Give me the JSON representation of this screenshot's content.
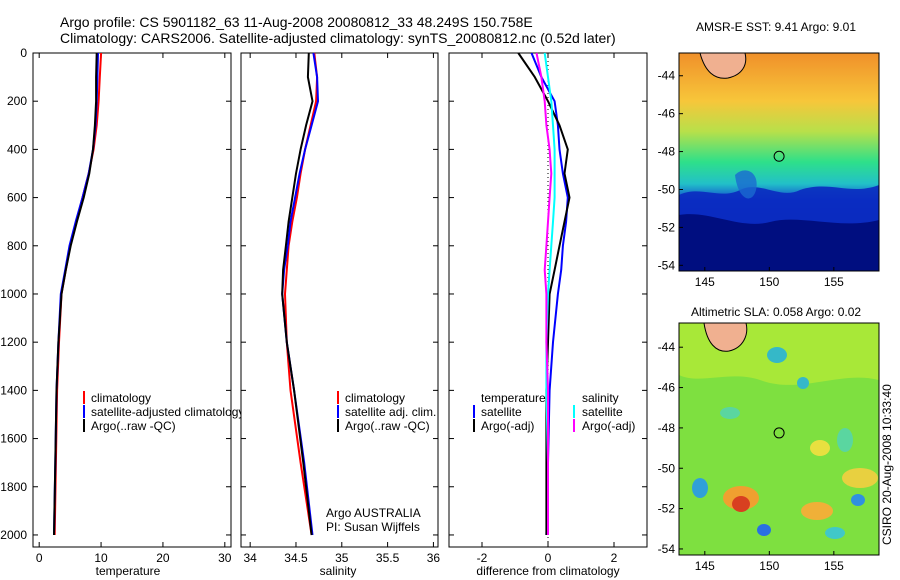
{
  "header": {
    "line1": "Argo profile: CS 5901182_63 11-Aug-2008 20080812_33 48.249S 150.758E",
    "line2": "Climatology: CARS2006. Satellite-adjusted climatology: synTS_20080812.nc (0.52d later)"
  },
  "sidebar_note": "CSIRO 20-Aug-2008 10:33:40",
  "colors": {
    "climatology": "#ff0000",
    "satellite": "#0000ff",
    "argo": "#000000",
    "salinity_satellite": "#00ffff",
    "salinity_argo": "#ff00ff"
  },
  "chart_data": [
    {
      "type": "line",
      "xlabel": "temperature",
      "ylabel": "",
      "xlim": [
        -1,
        31
      ],
      "ylim": [
        2050,
        0
      ],
      "xticks": [
        0,
        10,
        20,
        30
      ],
      "yticks": [
        0,
        200,
        400,
        600,
        800,
        1000,
        1200,
        1400,
        1600,
        1800,
        2000
      ],
      "legend": [
        "climatology",
        "satellite-adjusted climatology",
        "Argo(..raw -QC)"
      ],
      "legend_placement": "lower-right",
      "series": [
        {
          "name": "climatology",
          "color": "#ff0000",
          "x": [
            10.0,
            9.8,
            9.6,
            9.3,
            8.8,
            8.0,
            7.0,
            6.0,
            5.0,
            4.3,
            3.6,
            3.2,
            2.9,
            2.7,
            2.5
          ],
          "y": [
            0,
            100,
            200,
            300,
            400,
            500,
            600,
            700,
            800,
            900,
            1000,
            1200,
            1400,
            1700,
            2000
          ]
        },
        {
          "name": "satellite-adjusted climatology",
          "color": "#0000ff",
          "x": [
            9.5,
            9.4,
            9.3,
            9.1,
            8.7,
            8.0,
            7.0,
            5.9,
            4.9,
            4.2,
            3.5,
            3.1,
            2.8,
            2.6,
            2.4
          ],
          "y": [
            0,
            100,
            200,
            300,
            400,
            500,
            600,
            700,
            800,
            900,
            1000,
            1200,
            1400,
            1700,
            2000
          ]
        },
        {
          "name": "Argo(..raw -QC)",
          "color": "#000000",
          "x": [
            9.3,
            9.2,
            9.2,
            9.0,
            8.7,
            8.1,
            7.2,
            6.1,
            5.1,
            4.3,
            3.6,
            3.1,
            2.8,
            2.6,
            2.4
          ],
          "y": [
            0,
            100,
            200,
            300,
            400,
            500,
            600,
            700,
            800,
            900,
            1000,
            1200,
            1400,
            1700,
            2000
          ]
        }
      ]
    },
    {
      "type": "line",
      "xlabel": "salinity",
      "ylabel": "",
      "xlim": [
        33.9,
        36.05
      ],
      "ylim": [
        2050,
        0
      ],
      "xticks": [
        34,
        34.5,
        35,
        35.5,
        36
      ],
      "xticklabels": [
        "34",
        "34.5",
        "35",
        "35.5",
        "36"
      ],
      "legend": [
        "climatology",
        "satellite adj. clim.",
        "Argo(..raw -QC)"
      ],
      "legend_placement": "lower-right",
      "annotation": [
        "Argo AUSTRALIA",
        "PI: Susan Wijffels"
      ],
      "series": [
        {
          "name": "climatology",
          "color": "#ff0000",
          "x": [
            34.7,
            34.73,
            34.72,
            34.66,
            34.6,
            34.55,
            34.51,
            34.46,
            34.42,
            34.4,
            34.38,
            34.4,
            34.44,
            34.55,
            34.67
          ],
          "y": [
            0,
            100,
            200,
            300,
            400,
            500,
            600,
            700,
            800,
            900,
            1000,
            1200,
            1400,
            1700,
            2000
          ]
        },
        {
          "name": "satellite adj. clim.",
          "color": "#0000ff",
          "x": [
            34.69,
            34.73,
            34.74,
            34.67,
            34.6,
            34.54,
            34.49,
            34.44,
            34.41,
            34.37,
            34.35,
            34.4,
            34.48,
            34.59,
            34.68
          ],
          "y": [
            0,
            100,
            200,
            300,
            400,
            500,
            600,
            700,
            800,
            900,
            1000,
            1200,
            1400,
            1700,
            2000
          ]
        },
        {
          "name": "Argo(..raw -QC)",
          "color": "#000000",
          "x": [
            34.64,
            34.63,
            34.68,
            34.61,
            34.55,
            34.5,
            34.46,
            34.42,
            34.39,
            34.36,
            34.35,
            34.4,
            34.48,
            34.58,
            34.67
          ],
          "y": [
            0,
            100,
            200,
            300,
            400,
            500,
            600,
            700,
            800,
            900,
            1000,
            1200,
            1400,
            1700,
            2000
          ]
        }
      ]
    },
    {
      "type": "line",
      "xlabel": "difference from climatology",
      "ylabel": "",
      "xlim": [
        -3,
        3
      ],
      "ylim": [
        2050,
        0
      ],
      "xticks": [
        -2,
        0,
        2
      ],
      "zero_line": "dotted",
      "legend": [
        "temperature",
        "satellite",
        "Argo(-adj)",
        "salinity",
        "satellite",
        "Argo(-adj)"
      ],
      "legend_placement": "lower-center",
      "series": [
        {
          "name": "satellite",
          "color": "#0000ff",
          "x": [
            -0.5,
            -0.2,
            0.2,
            0.3,
            0.35,
            0.45,
            0.6,
            0.55,
            0.45,
            0.4,
            0.3,
            0.15,
            0.05,
            0.0,
            -0.05
          ],
          "y": [
            0,
            100,
            200,
            300,
            400,
            500,
            600,
            700,
            800,
            900,
            1000,
            1200,
            1400,
            1700,
            2000
          ]
        },
        {
          "name": "Argo(-adj)",
          "color": "#000000",
          "x": [
            -0.9,
            -0.4,
            0.0,
            0.35,
            0.6,
            0.5,
            0.65,
            0.5,
            0.35,
            0.2,
            0.05,
            0.0,
            -0.05,
            -0.05,
            -0.05
          ],
          "y": [
            0,
            100,
            200,
            300,
            400,
            500,
            600,
            700,
            800,
            900,
            1000,
            1200,
            1400,
            1700,
            2000
          ]
        },
        {
          "name": "satellite",
          "color": "#00ffff",
          "x": [
            -0.1,
            0.0,
            0.1,
            0.15,
            0.2,
            0.2,
            0.2,
            0.15,
            0.1,
            0.05,
            0.0,
            -0.05,
            -0.05,
            0.0,
            0.0
          ],
          "y": [
            0,
            100,
            200,
            300,
            400,
            500,
            600,
            700,
            800,
            900,
            1000,
            1200,
            1400,
            1700,
            2000
          ]
        },
        {
          "name": "Argo(-adj)",
          "color": "#ff00ff",
          "x": [
            -0.35,
            -0.2,
            -0.1,
            -0.05,
            0.05,
            0.1,
            0.05,
            0.0,
            -0.05,
            -0.1,
            -0.05,
            -0.05,
            0.0,
            0.0,
            0.0
          ],
          "y": [
            0,
            100,
            200,
            300,
            400,
            500,
            600,
            700,
            800,
            900,
            1000,
            1200,
            1400,
            1700,
            2000
          ]
        }
      ]
    },
    {
      "type": "heatmap",
      "title": "AMSR-E SST: 9.41 Argo: 9.01",
      "xlim": [
        143,
        158.5
      ],
      "ylim": [
        -54.3,
        -42.8
      ],
      "xticks": [
        145,
        150,
        155
      ],
      "yticks": [
        -44,
        -46,
        -48,
        -50,
        -52,
        -54
      ],
      "marker": {
        "lon": 150.758,
        "lat": -48.249
      },
      "palette": "jet"
    },
    {
      "type": "heatmap",
      "title": "Altimetric SLA: 0.058 Argo: 0.02",
      "xlim": [
        143,
        158.5
      ],
      "ylim": [
        -54.3,
        -42.8
      ],
      "xticks": [
        145,
        150,
        155
      ],
      "yticks": [
        -44,
        -46,
        -48,
        -50,
        -52,
        -54
      ],
      "marker": {
        "lon": 150.758,
        "lat": -48.249
      },
      "palette": "jet"
    }
  ]
}
